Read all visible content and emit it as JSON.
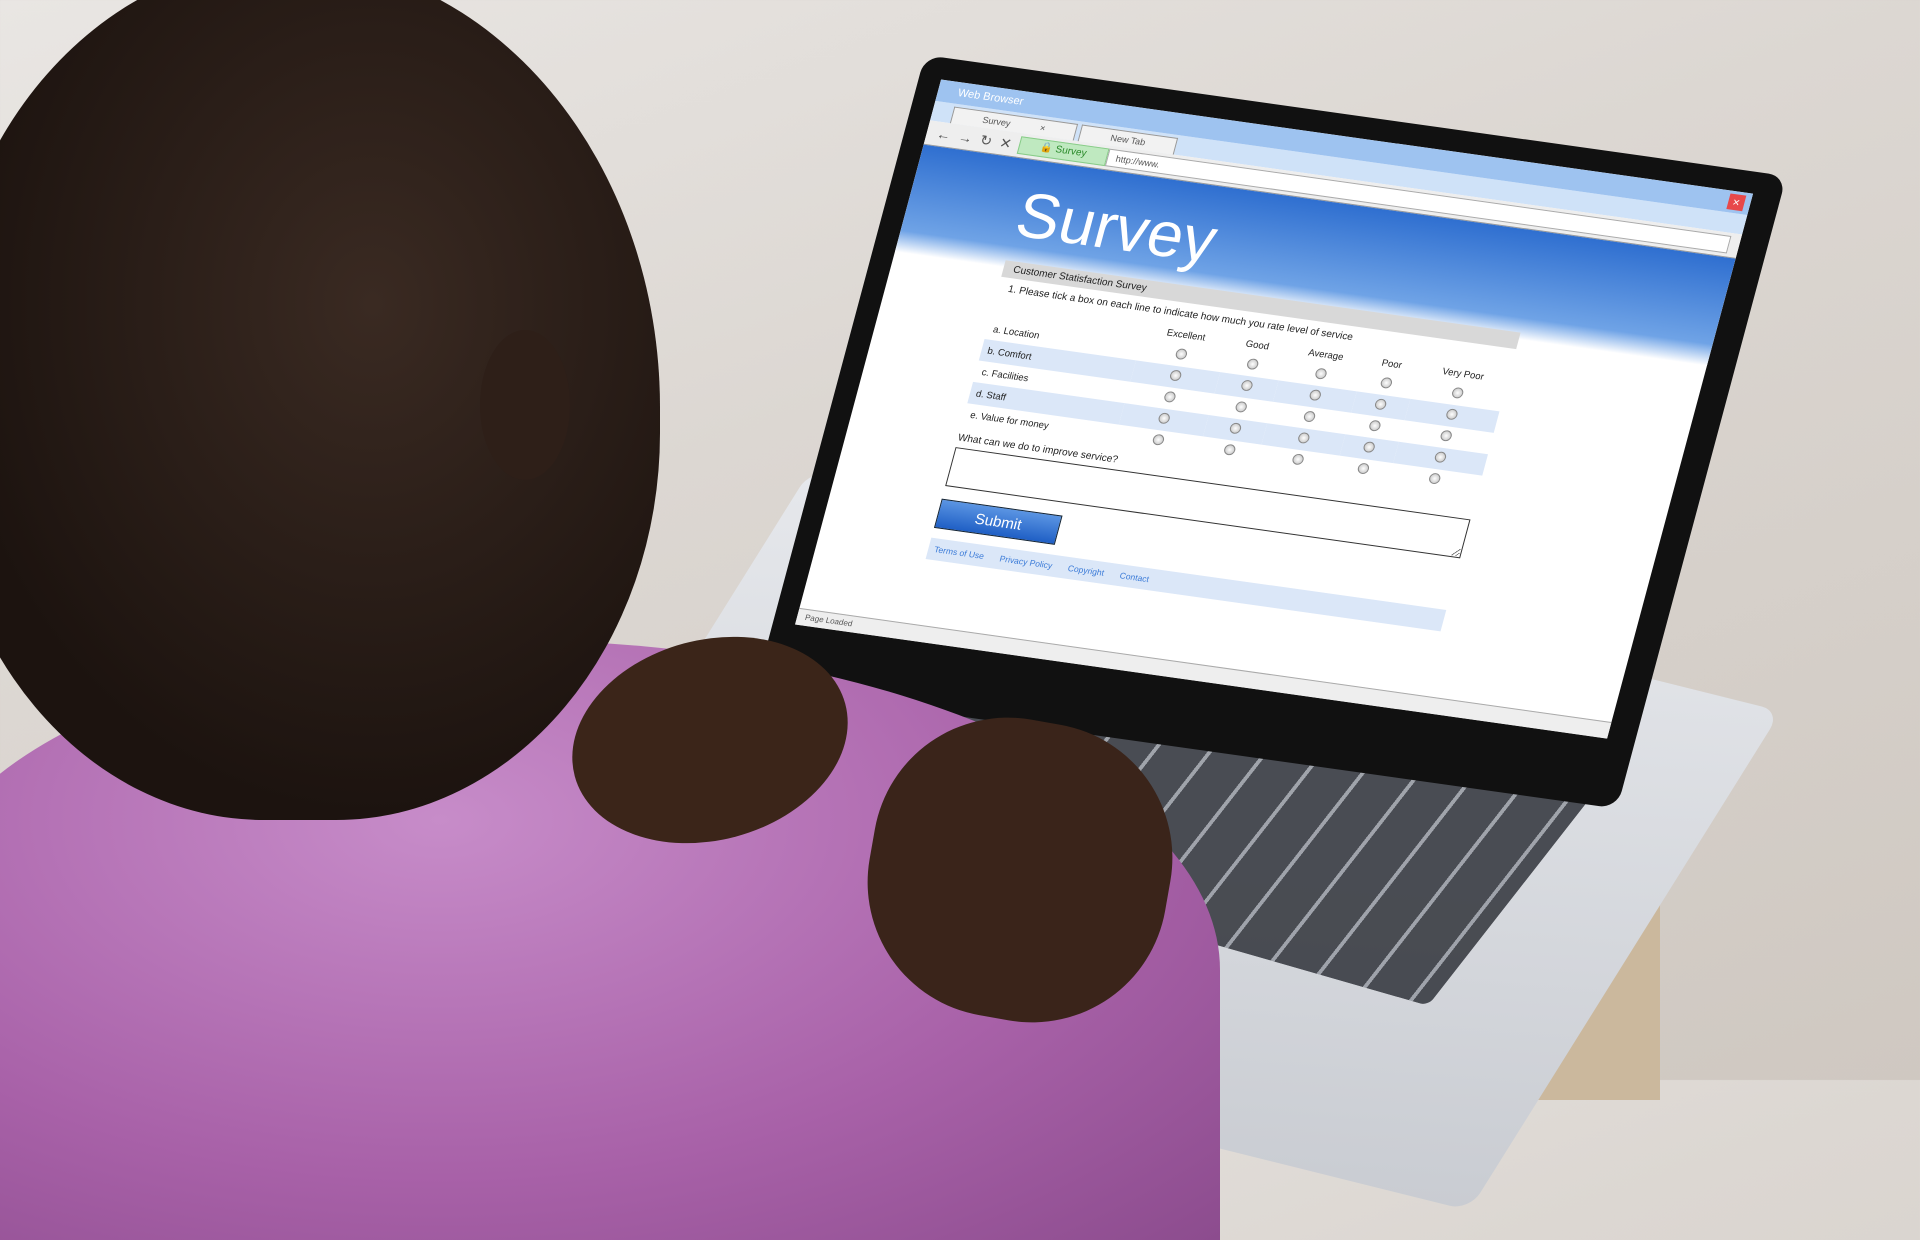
{
  "browser": {
    "window_title": "Web Browser",
    "tabs": [
      {
        "label": "Survey",
        "close": "×"
      },
      {
        "label": "New Tab"
      }
    ],
    "nav_icons": [
      "back-arrow-icon",
      "forward-arrow-icon",
      "reload-icon",
      "stop-icon"
    ],
    "address_site": "Survey",
    "address_url": "http://www.",
    "close_label": "×",
    "status": "Page Loaded"
  },
  "page": {
    "title": "Survey",
    "section_title": "Customer Statisfaction Survey",
    "question": "1. Please tick a box on each line to indicate how much you rate level of service",
    "columns": [
      "Excellent",
      "Good",
      "Average",
      "Poor",
      "Very Poor"
    ],
    "rows": [
      "a. Location",
      "b. Comfort",
      "c. Facilities",
      "d. Staff",
      "e. Value for money"
    ],
    "improve_label": "What can we do to improve service?",
    "improve_value": "",
    "submit_label": "Submit",
    "footer_links": [
      "Terms of Use",
      "Privacy Policy",
      "Copyright",
      "Contact"
    ]
  },
  "colors": {
    "accent": "#2f6fd0",
    "shirt": "#b06cb0",
    "close": "#e8484a"
  }
}
